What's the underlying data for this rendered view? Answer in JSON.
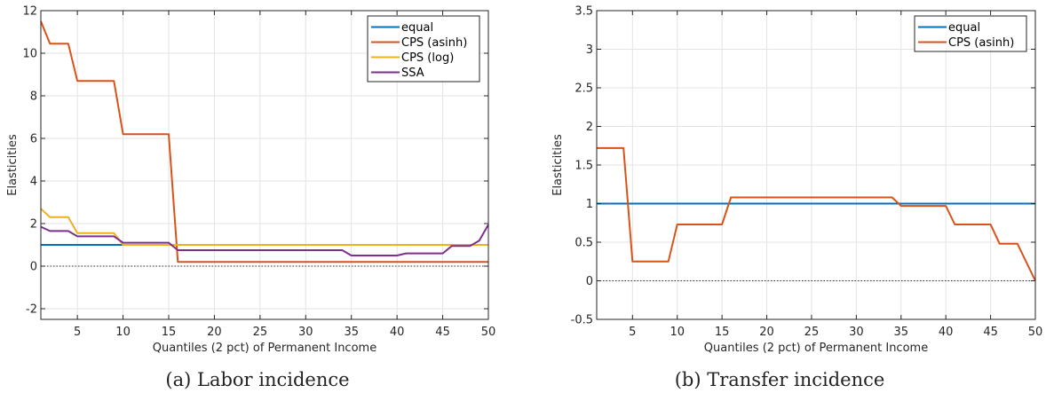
{
  "chart_data": [
    {
      "type": "line",
      "caption": "(a)  Labor incidence",
      "xlabel": "Quantiles (2 pct) of  Permanent Income",
      "ylabel": "Elasticities",
      "xlim": [
        1,
        50
      ],
      "ylim": [
        -2.5,
        12
      ],
      "xticks": [
        5,
        10,
        15,
        20,
        25,
        30,
        35,
        40,
        45,
        50
      ],
      "yticks": [
        -2,
        0,
        2,
        4,
        6,
        8,
        10,
        12
      ],
      "grid": true,
      "zero_line": true,
      "legend_position": "top-right",
      "series": [
        {
          "name": "equal",
          "color": "#0072BD",
          "x": [
            1,
            50
          ],
          "y": [
            1,
            1
          ]
        },
        {
          "name": "CPS (asinh)",
          "color": "#D95319",
          "x": [
            1,
            2,
            4,
            5,
            9,
            10,
            15,
            16,
            50
          ],
          "y": [
            11.5,
            10.45,
            10.45,
            8.7,
            8.7,
            6.2,
            6.2,
            0.2,
            0.2
          ]
        },
        {
          "name": "CPS (log)",
          "color": "#EDB120",
          "x": [
            1,
            2,
            4,
            5,
            9,
            10,
            15,
            16,
            50
          ],
          "y": [
            2.7,
            2.3,
            2.3,
            1.55,
            1.55,
            1.0,
            1.0,
            1.0,
            1.0
          ]
        },
        {
          "name": "SSA",
          "color": "#7E2F8E",
          "x": [
            1,
            2,
            4,
            5,
            9,
            10,
            15,
            16,
            34,
            35,
            40,
            41,
            45,
            46,
            48,
            49,
            50
          ],
          "y": [
            1.85,
            1.65,
            1.65,
            1.4,
            1.4,
            1.1,
            1.1,
            0.75,
            0.75,
            0.5,
            0.5,
            0.6,
            0.6,
            0.95,
            0.95,
            1.2,
            1.95
          ]
        }
      ]
    },
    {
      "type": "line",
      "caption": "(b)  Transfer incidence",
      "xlabel": "Quantiles (2 pct) of  Permanent Income",
      "ylabel": "Elasticities",
      "xlim": [
        1,
        50
      ],
      "ylim": [
        -0.5,
        3.5
      ],
      "xticks": [
        5,
        10,
        15,
        20,
        25,
        30,
        35,
        40,
        45,
        50
      ],
      "yticks": [
        -0.5,
        0,
        0.5,
        1,
        1.5,
        2,
        2.5,
        3,
        3.5
      ],
      "grid": true,
      "zero_line": true,
      "legend_position": "top-right",
      "series": [
        {
          "name": "equal",
          "color": "#0072BD",
          "x": [
            1,
            50
          ],
          "y": [
            1,
            1
          ]
        },
        {
          "name": "CPS (asinh)",
          "color": "#D95319",
          "x": [
            1,
            4,
            5,
            9,
            10,
            15,
            16,
            34,
            35,
            40,
            41,
            45,
            46,
            48,
            50
          ],
          "y": [
            1.72,
            1.72,
            0.25,
            0.25,
            0.73,
            0.73,
            1.08,
            1.08,
            0.97,
            0.97,
            0.73,
            0.73,
            0.48,
            0.48,
            0.0
          ]
        }
      ]
    }
  ]
}
